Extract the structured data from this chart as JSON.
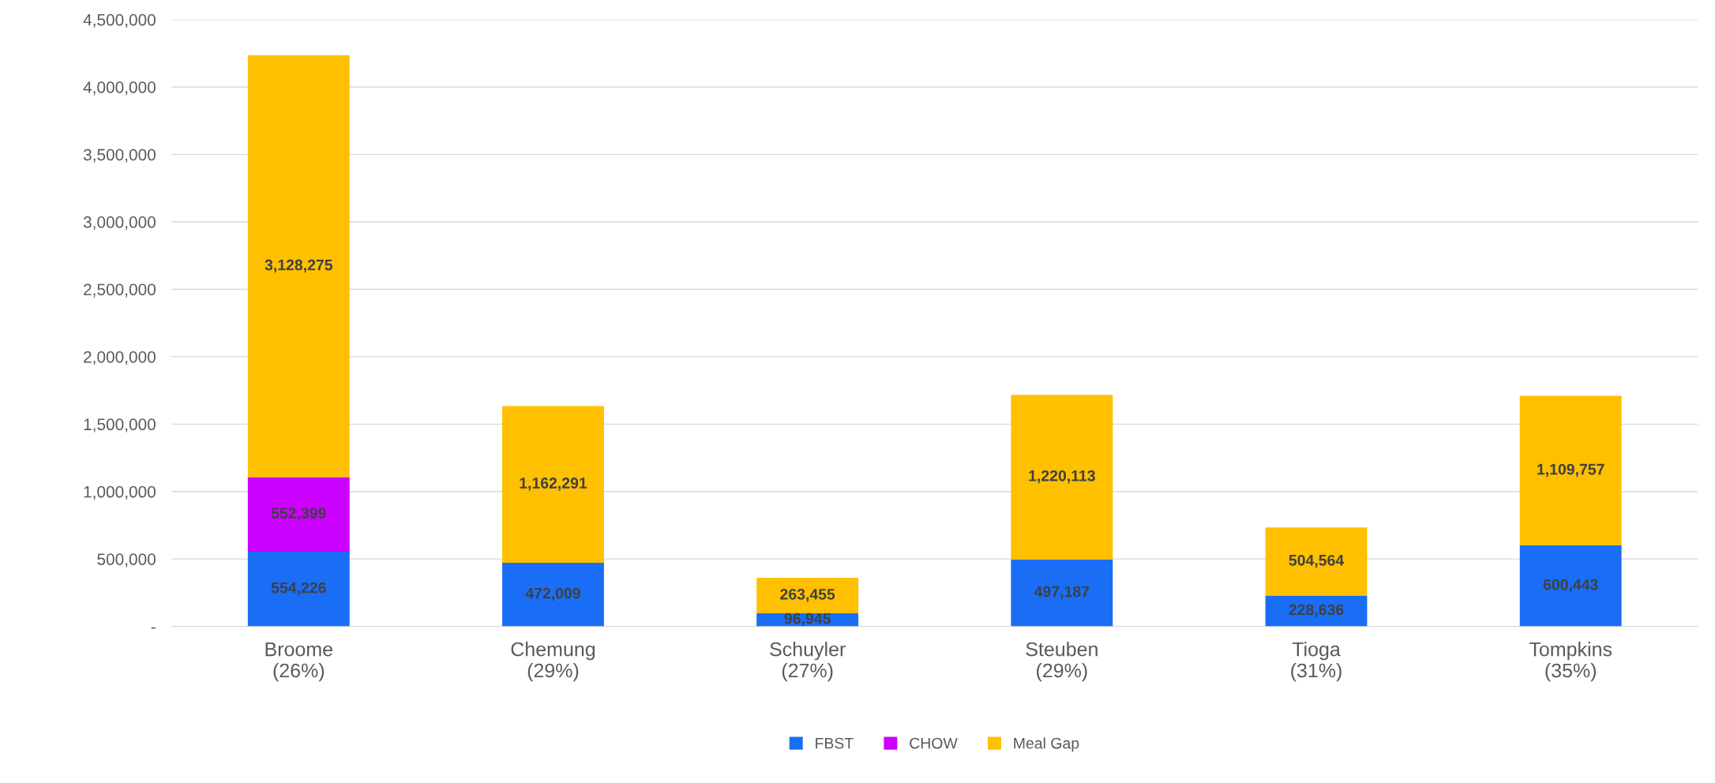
{
  "chart_data": {
    "type": "bar",
    "stacked": true,
    "categories": [
      "Broome\n(26%)",
      "Chemung\n(29%)",
      "Schuyler\n(27%)",
      "Steuben\n(29%)",
      "Tioga\n(31%)",
      "Tompkins\n(35%)"
    ],
    "series": [
      {
        "name": "FBST",
        "color": "#1a6ef5",
        "values": [
          554226,
          472009,
          96945,
          497187,
          228636,
          600443
        ],
        "value_labels": [
          "554,226",
          "472,009",
          "96,945",
          "497,187",
          "228,636",
          "600,443"
        ]
      },
      {
        "name": "CHOW",
        "color": "#cc00ff",
        "values": [
          552399,
          null,
          null,
          null,
          null,
          null
        ],
        "value_labels": [
          "552,399",
          null,
          null,
          null,
          null,
          null
        ]
      },
      {
        "name": "Meal Gap",
        "color": "#ffc000",
        "values": [
          3128275,
          1162291,
          263455,
          1220113,
          504564,
          1109757
        ],
        "value_labels": [
          "3,128,275",
          "1,162,291",
          "263,455",
          "1,220,113",
          "504,564",
          "1,109,757"
        ]
      }
    ],
    "ylim": [
      0,
      4500000
    ],
    "yticks": [
      {
        "value": 0,
        "label": "-"
      },
      {
        "value": 500000,
        "label": "500,000"
      },
      {
        "value": 1000000,
        "label": "1,000,000"
      },
      {
        "value": 1500000,
        "label": "1,500,000"
      },
      {
        "value": 2000000,
        "label": "2,000,000"
      },
      {
        "value": 2500000,
        "label": "2,500,000"
      },
      {
        "value": 3000000,
        "label": "3,000,000"
      },
      {
        "value": 3500000,
        "label": "3,500,000"
      },
      {
        "value": 4000000,
        "label": "4,000,000"
      },
      {
        "value": 4500000,
        "label": "4,500,000"
      }
    ],
    "grid": "y",
    "legend": "bottom"
  }
}
